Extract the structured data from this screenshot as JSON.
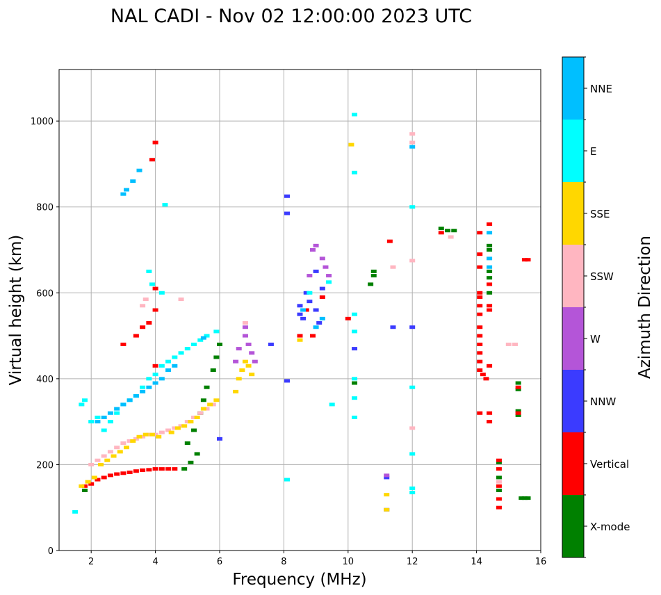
{
  "chart_data": {
    "type": "scatter",
    "title": "NAL CADI - Nov 02 12:00:00 2023 UTC",
    "xlabel": "Frequency (MHz)",
    "ylabel": "Virtual height (km)",
    "xlim": [
      1,
      16
    ],
    "ylim": [
      0,
      1120
    ],
    "xticks": [
      2,
      4,
      6,
      8,
      10,
      12,
      14,
      16
    ],
    "yticks": [
      0,
      200,
      400,
      600,
      800,
      1000
    ],
    "grid": true,
    "colorbar": {
      "label": "Azimuth Direction",
      "categories": [
        "X-mode",
        "Vertical",
        "NNW",
        "W",
        "SSW",
        "SSE",
        "E",
        "NNE"
      ],
      "colors": {
        "X-mode": "#008000",
        "Vertical": "#ff0000",
        "NNW": "#3b3bff",
        "W": "#b455d8",
        "SSW": "#ffb6c1",
        "SSE": "#ffd700",
        "E": "#00ffff",
        "NNE": "#00bfff"
      }
    },
    "series": [
      {
        "name": "X-mode",
        "points": [
          [
            4.9,
            190
          ],
          [
            5.1,
            205
          ],
          [
            5.3,
            225
          ],
          [
            5.0,
            250
          ],
          [
            5.2,
            280
          ],
          [
            5.4,
            320
          ],
          [
            5.5,
            350
          ],
          [
            5.6,
            380
          ],
          [
            5.8,
            420
          ],
          [
            5.9,
            450
          ],
          [
            6.0,
            480
          ],
          [
            1.8,
            140
          ],
          [
            10.2,
            390
          ],
          [
            10.8,
            640
          ],
          [
            10.8,
            650
          ],
          [
            10.7,
            620
          ],
          [
            12.9,
            750
          ],
          [
            13.1,
            745
          ],
          [
            13.3,
            745
          ],
          [
            14.4,
            700
          ],
          [
            14.4,
            710
          ],
          [
            14.4,
            650
          ],
          [
            14.4,
            635
          ],
          [
            14.4,
            600
          ],
          [
            14.7,
            205
          ],
          [
            14.7,
            170
          ],
          [
            14.7,
            140
          ],
          [
            15.3,
            390
          ],
          [
            15.3,
            375
          ],
          [
            15.3,
            325
          ],
          [
            15.3,
            315
          ],
          [
            15.5,
            122
          ],
          [
            15.4,
            122
          ],
          [
            15.6,
            122
          ]
        ]
      },
      {
        "name": "Vertical",
        "points": [
          [
            1.8,
            150
          ],
          [
            2.0,
            155
          ],
          [
            2.2,
            165
          ],
          [
            2.4,
            170
          ],
          [
            2.6,
            175
          ],
          [
            2.8,
            178
          ],
          [
            3.0,
            180
          ],
          [
            3.2,
            182
          ],
          [
            3.4,
            185
          ],
          [
            3.6,
            187
          ],
          [
            3.8,
            188
          ],
          [
            4.0,
            190
          ],
          [
            4.2,
            190
          ],
          [
            4.4,
            190
          ],
          [
            4.6,
            190
          ],
          [
            3.0,
            480
          ],
          [
            3.4,
            500
          ],
          [
            3.6,
            520
          ],
          [
            3.8,
            530
          ],
          [
            4.0,
            430
          ],
          [
            4.0,
            610
          ],
          [
            4.0,
            560
          ],
          [
            4.0,
            950
          ],
          [
            3.9,
            910
          ],
          [
            8.5,
            500
          ],
          [
            8.9,
            500
          ],
          [
            8.7,
            560
          ],
          [
            9.2,
            590
          ],
          [
            10.0,
            540
          ],
          [
            11.3,
            720
          ],
          [
            12.9,
            740
          ],
          [
            14.1,
            420
          ],
          [
            14.1,
            440
          ],
          [
            14.1,
            460
          ],
          [
            14.1,
            480
          ],
          [
            14.1,
            500
          ],
          [
            14.1,
            520
          ],
          [
            14.1,
            550
          ],
          [
            14.1,
            570
          ],
          [
            14.1,
            590
          ],
          [
            14.1,
            600
          ],
          [
            14.2,
            410
          ],
          [
            14.3,
            400
          ],
          [
            14.4,
            430
          ],
          [
            14.4,
            560
          ],
          [
            14.4,
            570
          ],
          [
            14.4,
            620
          ],
          [
            14.4,
            760
          ],
          [
            14.4,
            300
          ],
          [
            14.4,
            320
          ],
          [
            14.1,
            320
          ],
          [
            14.7,
            100
          ],
          [
            14.7,
            120
          ],
          [
            14.7,
            150
          ],
          [
            14.7,
            190
          ],
          [
            14.7,
            210
          ],
          [
            15.3,
            380
          ],
          [
            15.3,
            320
          ],
          [
            15.6,
            677
          ],
          [
            15.5,
            677
          ],
          [
            14.1,
            740
          ],
          [
            14.1,
            690
          ],
          [
            14.1,
            660
          ]
        ]
      },
      {
        "name": "NNW",
        "points": [
          [
            8.1,
            825
          ],
          [
            8.1,
            785
          ],
          [
            8.1,
            395
          ],
          [
            8.5,
            570
          ],
          [
            8.5,
            550
          ],
          [
            8.6,
            540
          ],
          [
            8.8,
            580
          ],
          [
            9.0,
            560
          ],
          [
            9.1,
            530
          ],
          [
            9.2,
            610
          ],
          [
            10.2,
            470
          ],
          [
            11.4,
            520
          ],
          [
            12.0,
            520
          ],
          [
            11.2,
            95
          ],
          [
            11.2,
            170
          ],
          [
            6.0,
            260
          ],
          [
            7.6,
            480
          ],
          [
            8.7,
            600
          ],
          [
            9.0,
            650
          ]
        ]
      },
      {
        "name": "W",
        "points": [
          [
            8.9,
            700
          ],
          [
            9.0,
            710
          ],
          [
            9.2,
            680
          ],
          [
            9.3,
            660
          ],
          [
            8.8,
            640
          ],
          [
            6.8,
            520
          ],
          [
            6.8,
            500
          ],
          [
            6.9,
            480
          ],
          [
            7.0,
            460
          ],
          [
            7.1,
            440
          ],
          [
            6.6,
            470
          ],
          [
            6.5,
            440
          ],
          [
            9.4,
            640
          ],
          [
            11.2,
            175
          ]
        ]
      },
      {
        "name": "SSW",
        "points": [
          [
            2.0,
            200
          ],
          [
            2.2,
            210
          ],
          [
            2.4,
            220
          ],
          [
            2.6,
            230
          ],
          [
            2.8,
            240
          ],
          [
            3.0,
            250
          ],
          [
            3.2,
            255
          ],
          [
            3.4,
            260
          ],
          [
            3.6,
            265
          ],
          [
            3.8,
            270
          ],
          [
            4.0,
            270
          ],
          [
            4.2,
            275
          ],
          [
            4.4,
            280
          ],
          [
            4.6,
            285
          ],
          [
            4.8,
            290
          ],
          [
            5.0,
            300
          ],
          [
            5.2,
            310
          ],
          [
            5.4,
            320
          ],
          [
            5.6,
            330
          ],
          [
            5.8,
            340
          ],
          [
            3.6,
            570
          ],
          [
            3.7,
            585
          ],
          [
            6.8,
            530
          ],
          [
            12.0,
            970
          ],
          [
            12.0,
            950
          ],
          [
            12.0,
            675
          ],
          [
            12.0,
            285
          ],
          [
            11.4,
            660
          ],
          [
            13.2,
            730
          ],
          [
            15.0,
            480
          ],
          [
            15.2,
            480
          ],
          [
            14.7,
            160
          ],
          [
            4.8,
            585
          ]
        ]
      },
      {
        "name": "SSE",
        "points": [
          [
            1.7,
            150
          ],
          [
            1.9,
            160
          ],
          [
            2.1,
            170
          ],
          [
            2.3,
            200
          ],
          [
            2.5,
            210
          ],
          [
            2.7,
            220
          ],
          [
            2.9,
            230
          ],
          [
            3.1,
            240
          ],
          [
            3.3,
            255
          ],
          [
            3.5,
            265
          ],
          [
            3.7,
            270
          ],
          [
            3.9,
            270
          ],
          [
            4.1,
            265
          ],
          [
            4.5,
            275
          ],
          [
            4.7,
            285
          ],
          [
            4.9,
            290
          ],
          [
            5.1,
            300
          ],
          [
            5.3,
            310
          ],
          [
            5.5,
            330
          ],
          [
            5.7,
            340
          ],
          [
            5.9,
            350
          ],
          [
            6.5,
            370
          ],
          [
            6.6,
            400
          ],
          [
            6.7,
            420
          ],
          [
            6.8,
            440
          ],
          [
            6.9,
            430
          ],
          [
            7.0,
            410
          ],
          [
            8.5,
            490
          ],
          [
            10.1,
            945
          ],
          [
            11.2,
            95
          ],
          [
            11.2,
            130
          ]
        ]
      },
      {
        "name": "E",
        "points": [
          [
            1.7,
            340
          ],
          [
            1.8,
            350
          ],
          [
            2.0,
            300
          ],
          [
            2.2,
            310
          ],
          [
            2.4,
            280
          ],
          [
            2.6,
            300
          ],
          [
            2.8,
            320
          ],
          [
            3.0,
            340
          ],
          [
            3.2,
            350
          ],
          [
            3.4,
            360
          ],
          [
            3.6,
            380
          ],
          [
            3.8,
            400
          ],
          [
            4.0,
            410
          ],
          [
            4.2,
            430
          ],
          [
            4.4,
            440
          ],
          [
            4.6,
            450
          ],
          [
            4.8,
            460
          ],
          [
            5.0,
            470
          ],
          [
            5.2,
            480
          ],
          [
            5.4,
            490
          ],
          [
            5.6,
            500
          ],
          [
            5.9,
            510
          ],
          [
            4.2,
            600
          ],
          [
            4.3,
            805
          ],
          [
            3.8,
            650
          ],
          [
            3.9,
            620
          ],
          [
            10.2,
            1015
          ],
          [
            10.2,
            880
          ],
          [
            10.2,
            550
          ],
          [
            10.2,
            510
          ],
          [
            10.2,
            400
          ],
          [
            10.2,
            355
          ],
          [
            10.2,
            310
          ],
          [
            12.0,
            800
          ],
          [
            12.0,
            380
          ],
          [
            12.0,
            225
          ],
          [
            12.0,
            145
          ],
          [
            12.0,
            135
          ],
          [
            9.5,
            340
          ],
          [
            8.1,
            165
          ],
          [
            8.8,
            600
          ],
          [
            9.4,
            625
          ],
          [
            1.5,
            90
          ]
        ]
      },
      {
        "name": "NNE",
        "points": [
          [
            2.2,
            300
          ],
          [
            2.4,
            310
          ],
          [
            2.6,
            320
          ],
          [
            2.8,
            330
          ],
          [
            3.0,
            340
          ],
          [
            3.2,
            350
          ],
          [
            3.4,
            360
          ],
          [
            3.6,
            370
          ],
          [
            3.8,
            380
          ],
          [
            4.0,
            390
          ],
          [
            4.2,
            400
          ],
          [
            4.4,
            420
          ],
          [
            4.6,
            430
          ],
          [
            3.0,
            830
          ],
          [
            3.1,
            840
          ],
          [
            3.3,
            860
          ],
          [
            3.5,
            885
          ],
          [
            12.0,
            940
          ],
          [
            14.4,
            740
          ],
          [
            14.4,
            680
          ],
          [
            14.4,
            660
          ],
          [
            8.6,
            560
          ],
          [
            9.0,
            520
          ],
          [
            9.2,
            540
          ],
          [
            5.5,
            495
          ]
        ]
      }
    ]
  }
}
